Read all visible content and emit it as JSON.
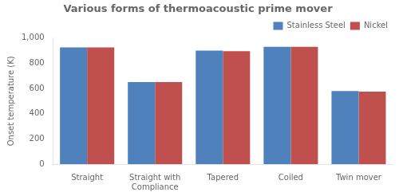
{
  "chart_data": {
    "type": "bar",
    "title": "Various forms of thermoacoustic prime mover",
    "categories": [
      "Straight",
      "Straight with\nCompliance",
      "Tapered",
      "Coiled",
      "Twin mover"
    ],
    "series": [
      {
        "name": "Stainless Steel",
        "color": "#4F81BD",
        "values": [
          925,
          650,
          900,
          930,
          580
        ]
      },
      {
        "name": "Nickel",
        "color": "#C0504D",
        "values": [
          925,
          650,
          895,
          930,
          575
        ]
      }
    ],
    "ylabel": "Onset temperature (K)",
    "ylim": [
      0,
      1000
    ],
    "yticks": [
      0,
      200,
      400,
      600,
      800,
      1000
    ],
    "grid": false,
    "legend": "upper right"
  }
}
